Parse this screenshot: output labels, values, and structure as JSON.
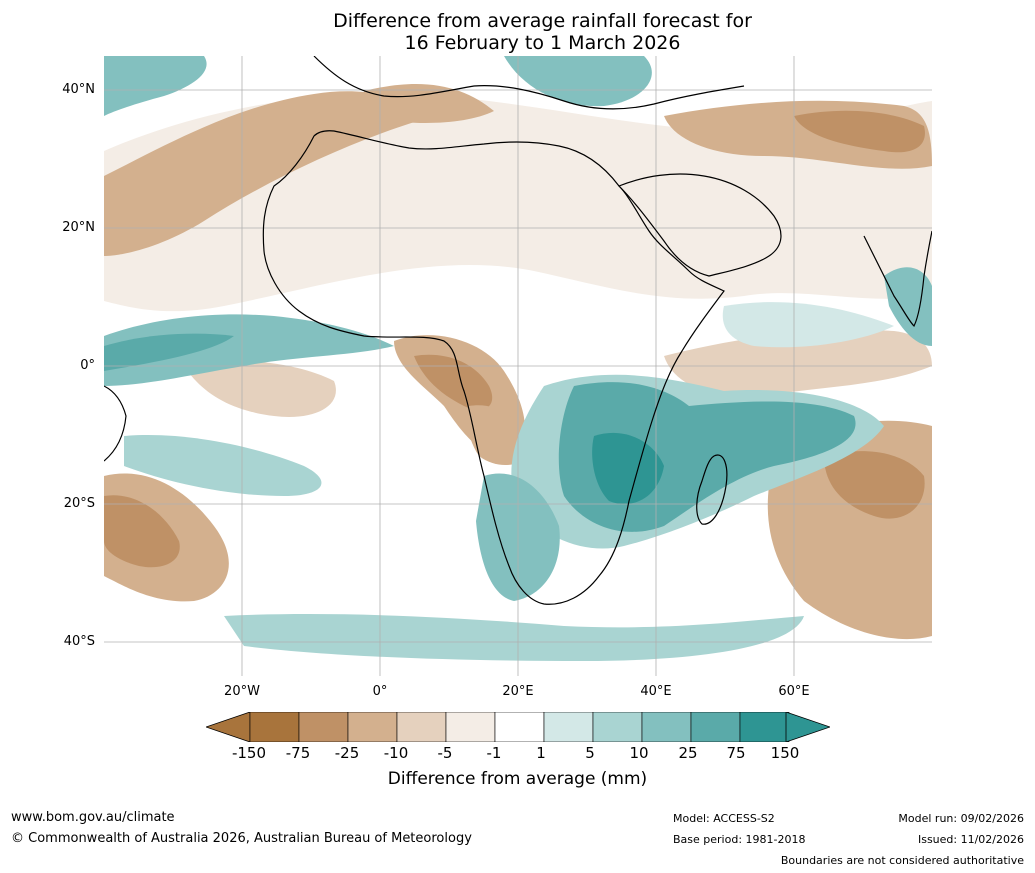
{
  "title": {
    "line1": "Difference from average rainfall forecast for",
    "line2": "16 February to 1 March 2026"
  },
  "map": {
    "lat_labels": [
      "40°N",
      "20°N",
      "0°",
      "20°S",
      "40°S"
    ],
    "lon_labels": [
      "20°W",
      "0°",
      "20°E",
      "40°E",
      "60°E"
    ],
    "colors": {
      "dry_strong": "#a8743c",
      "dry_2": "#bf9166",
      "dry_3": "#d3b08e",
      "dry_4": "#e5d1be",
      "dry_5": "#f4ede6",
      "neutral": "#ffffff",
      "wet_1": "#d3e8e7",
      "wet_2": "#a9d4d2",
      "wet_3": "#83c0bf",
      "wet_4": "#5aaaa9",
      "wet_strong": "#2e9593"
    }
  },
  "colorbar": {
    "ticks": [
      "-150",
      "-75",
      "-25",
      "-10",
      "-5",
      "-1",
      "1",
      "5",
      "10",
      "25",
      "75",
      "150"
    ],
    "colors": [
      "#a8743c",
      "#bf9166",
      "#d3b08e",
      "#e5d1be",
      "#f4ede6",
      "#ffffff",
      "#d3e8e7",
      "#a9d4d2",
      "#83c0bf",
      "#5aaaa9",
      "#2e9593"
    ],
    "label": "Difference from average (mm)"
  },
  "footer": {
    "website": "www.bom.gov.au/climate",
    "copyright": "© Commonwealth of Australia 2026, Australian Bureau of Meteorology",
    "model": "Model: ACCESS-S2",
    "base_period": "Base period: 1981-2018",
    "model_run": "Model run: 09/02/2026",
    "issued": "Issued: 11/02/2026",
    "disclaimer": "Boundaries are not considered authoritative"
  }
}
